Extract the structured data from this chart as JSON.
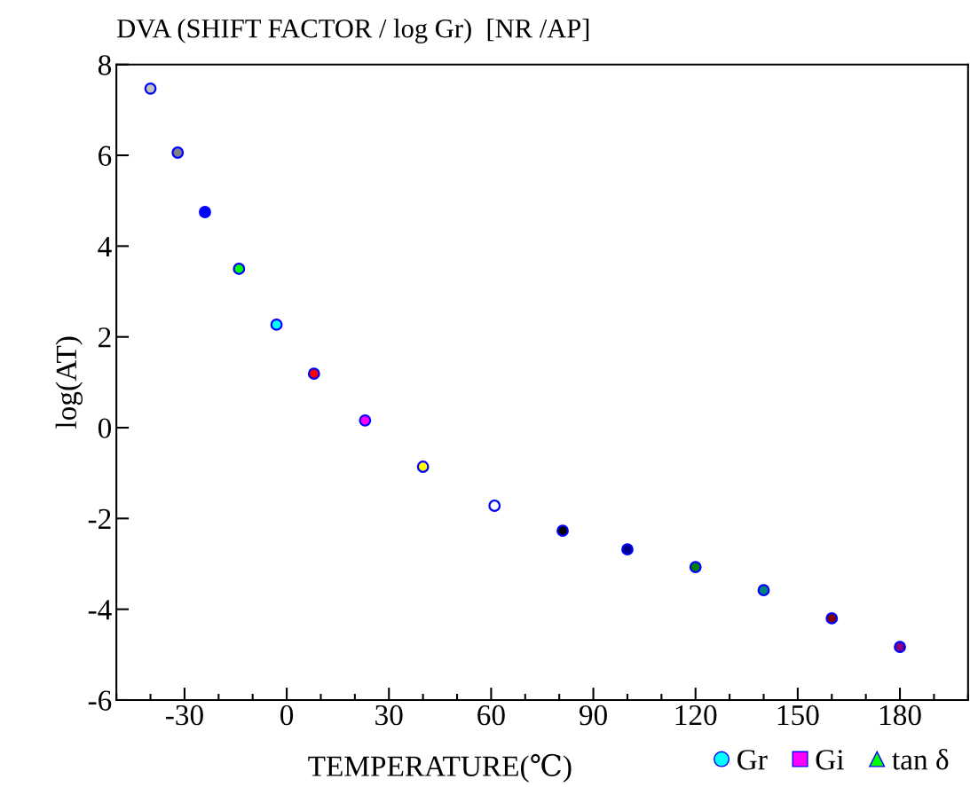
{
  "chart_data": {
    "type": "scatter",
    "title": "DVA (SHIFT FACTOR / log Gr)  [NR /AP]",
    "xlabel": "TEMPERATURE(℃)",
    "ylabel": "log(AT)",
    "xlim": [
      -50,
      200
    ],
    "xticks": [
      -30,
      0,
      30,
      60,
      90,
      120,
      150,
      180
    ],
    "ylim": [
      -6,
      8
    ],
    "yticks": [
      -6,
      -4,
      -2,
      0,
      2,
      4,
      6,
      8
    ],
    "grid": false,
    "legend": "bottom right",
    "series": [
      {
        "name": "Gr",
        "color": "#00ffff",
        "marker": "circle",
        "x": [
          -40,
          -32,
          -24,
          -14,
          -3,
          8,
          23,
          40,
          61,
          81,
          100,
          120,
          140,
          160,
          180
        ],
        "values": [
          7.47,
          6.06,
          4.75,
          3.5,
          2.27,
          1.19,
          0.16,
          -0.86,
          -1.72,
          -2.27,
          -2.68,
          -3.07,
          -3.58,
          -4.2,
          -4.83
        ],
        "colors": [
          "#c0c0c0",
          "#808080",
          "#0000ff",
          "#00ff00",
          "#00ffff",
          "#ff0000",
          "#ff00ff",
          "#ffff00",
          "#ffffff",
          "#000000",
          "#000080",
          "#008000",
          "#008080",
          "#800000",
          "#800080"
        ]
      },
      {
        "name": "Gi",
        "color": "#ff00ff",
        "marker": "square"
      },
      {
        "name": "tan δ",
        "color": "#00ff00",
        "marker": "triangle"
      }
    ]
  }
}
